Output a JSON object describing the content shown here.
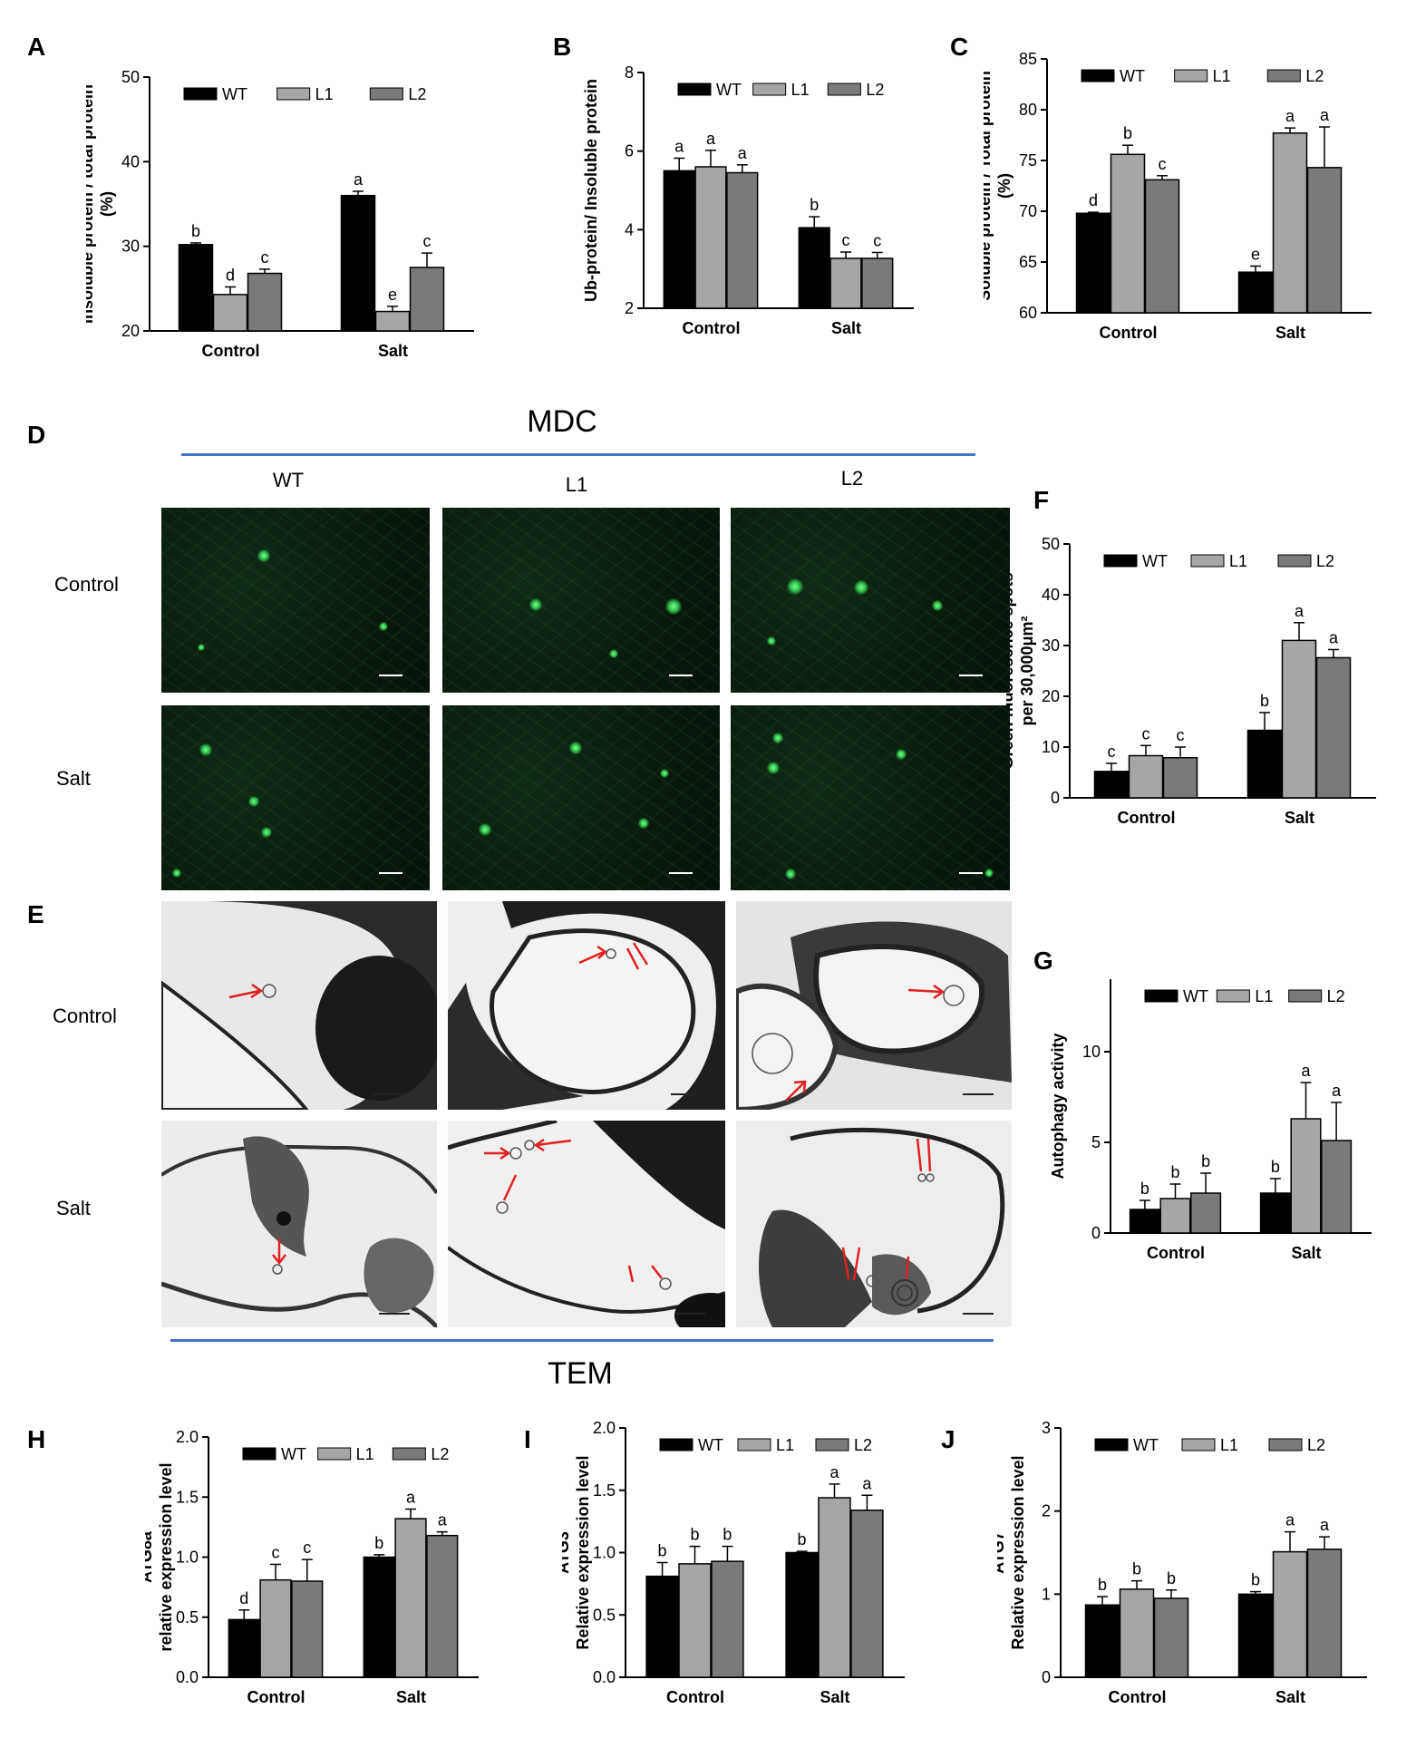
{
  "panel_letters": {
    "A": "A",
    "B": "B",
    "C": "C",
    "D": "D",
    "E": "E",
    "F": "F",
    "G": "G",
    "H": "H",
    "I": "I",
    "J": "J"
  },
  "image_panels": {
    "mdc_header": "MDC",
    "tem_header": "TEM",
    "columns": [
      "WT",
      "L1",
      "L2"
    ],
    "rows_mdc": [
      "Control",
      "Salt"
    ],
    "rows_tem": [
      "Control",
      "Salt"
    ]
  },
  "colors": {
    "WT": "#000000",
    "L1": "#a6a6a6",
    "L2": "#7a7a7a",
    "rule": "#4472c4"
  },
  "chart_data": [
    {
      "id": "A",
      "type": "bar",
      "categories": [
        "Control",
        "Salt"
      ],
      "series": [
        {
          "name": "WT",
          "values": [
            30.2,
            36.0
          ],
          "errors": [
            0.2,
            0.5
          ],
          "letters": [
            "b",
            "a"
          ]
        },
        {
          "name": "L1",
          "values": [
            24.3,
            22.3
          ],
          "errors": [
            0.9,
            0.6
          ],
          "letters": [
            "d",
            "e"
          ]
        },
        {
          "name": "L2",
          "values": [
            26.8,
            27.5
          ],
          "errors": [
            0.5,
            1.7
          ],
          "letters": [
            "c",
            "c"
          ]
        }
      ],
      "ylabel": "insoluble protein / total protein\n(%)",
      "ylim": [
        20,
        50
      ],
      "ymin_label": 20,
      "yticks": [
        20,
        30,
        40,
        50
      ],
      "legend": "top"
    },
    {
      "id": "B",
      "type": "bar",
      "categories": [
        "Control",
        "Salt"
      ],
      "series": [
        {
          "name": "WT",
          "values": [
            5.5,
            4.05
          ],
          "errors": [
            0.32,
            0.28
          ],
          "letters": [
            "a",
            "b"
          ]
        },
        {
          "name": "L1",
          "values": [
            5.6,
            3.27
          ],
          "errors": [
            0.42,
            0.16
          ],
          "letters": [
            "a",
            "c"
          ]
        },
        {
          "name": "L2",
          "values": [
            5.45,
            3.27
          ],
          "errors": [
            0.2,
            0.15
          ],
          "letters": [
            "a",
            "c"
          ]
        }
      ],
      "ylabel": "Ub-protein/ Insoluble protein",
      "ylim": [
        2,
        8
      ],
      "yticks": [
        2,
        4,
        6,
        8
      ],
      "legend": "top"
    },
    {
      "id": "C",
      "type": "bar",
      "categories": [
        "Control",
        "Salt"
      ],
      "series": [
        {
          "name": "WT",
          "values": [
            69.8,
            64.0
          ],
          "errors": [
            0.1,
            0.6
          ],
          "letters": [
            "d",
            "e"
          ]
        },
        {
          "name": "L1",
          "values": [
            75.6,
            77.7
          ],
          "errors": [
            0.9,
            0.5
          ],
          "letters": [
            "b",
            "a"
          ]
        },
        {
          "name": "L2",
          "values": [
            73.1,
            74.3
          ],
          "errors": [
            0.4,
            4.0
          ],
          "letters": [
            "c",
            "a"
          ]
        }
      ],
      "ylabel": "Soluble protein / Total protein\n(%)",
      "ylim": [
        60,
        85
      ],
      "yticks": [
        60,
        65,
        70,
        75,
        80,
        85
      ],
      "legend": "top"
    },
    {
      "id": "F",
      "type": "bar",
      "categories": [
        "Control",
        "Salt"
      ],
      "series": [
        {
          "name": "WT",
          "values": [
            5.2,
            13.3
          ],
          "errors": [
            1.6,
            3.5
          ],
          "letters": [
            "c",
            "b"
          ]
        },
        {
          "name": "L1",
          "values": [
            8.3,
            31.0
          ],
          "errors": [
            2.0,
            3.5
          ],
          "letters": [
            "c",
            "a"
          ]
        },
        {
          "name": "L2",
          "values": [
            7.9,
            27.6
          ],
          "errors": [
            2.1,
            1.6
          ],
          "letters": [
            "c",
            "a"
          ]
        }
      ],
      "ylabel": "Green ffluorescnce spots\nper 30,000μm²",
      "ylim": [
        0,
        50
      ],
      "yticks": [
        0,
        10,
        20,
        30,
        40,
        50
      ],
      "legend": "top"
    },
    {
      "id": "G",
      "type": "bar",
      "categories": [
        "Control",
        "Salt"
      ],
      "series": [
        {
          "name": "WT",
          "values": [
            1.3,
            2.2
          ],
          "errors": [
            0.5,
            0.8
          ],
          "letters": [
            "b",
            "b"
          ]
        },
        {
          "name": "L1",
          "values": [
            1.9,
            6.3
          ],
          "errors": [
            0.8,
            2.0
          ],
          "letters": [
            "b",
            "a"
          ]
        },
        {
          "name": "L2",
          "values": [
            2.2,
            5.1
          ],
          "errors": [
            1.1,
            2.1
          ],
          "letters": [
            "b",
            "a"
          ]
        }
      ],
      "ylabel": "Autophagy activity",
      "ylim": [
        0,
        14
      ],
      "yticks": [
        0,
        5,
        10
      ],
      "legend": "top"
    },
    {
      "id": "H",
      "type": "bar",
      "categories": [
        "Control",
        "Salt"
      ],
      "series": [
        {
          "name": "WT",
          "values": [
            0.48,
            1.0
          ],
          "errors": [
            0.08,
            0.02
          ],
          "letters": [
            "d",
            "b"
          ]
        },
        {
          "name": "L1",
          "values": [
            0.81,
            1.32
          ],
          "errors": [
            0.13,
            0.08
          ],
          "letters": [
            "c",
            "a"
          ]
        },
        {
          "name": "L2",
          "values": [
            0.8,
            1.18
          ],
          "errors": [
            0.18,
            0.03
          ],
          "letters": [
            "c",
            "a"
          ]
        }
      ],
      "ylabel": "ATG8a\nrelative expression level",
      "ylim": [
        0,
        2.0
      ],
      "yticks": [
        0.0,
        0.5,
        1.0,
        1.5,
        2.0
      ],
      "tickfmt": 1,
      "legend": "top"
    },
    {
      "id": "I",
      "type": "bar",
      "categories": [
        "Control",
        "Salt"
      ],
      "series": [
        {
          "name": "WT",
          "values": [
            0.81,
            1.0
          ],
          "errors": [
            0.11,
            0.01
          ],
          "letters": [
            "b",
            "b"
          ]
        },
        {
          "name": "L1",
          "values": [
            0.91,
            1.44
          ],
          "errors": [
            0.14,
            0.11
          ],
          "letters": [
            "b",
            "a"
          ]
        },
        {
          "name": "L2",
          "values": [
            0.93,
            1.34
          ],
          "errors": [
            0.12,
            0.12
          ],
          "letters": [
            "b",
            "a"
          ]
        }
      ],
      "ylabel": "ATG3\nRelative expression level",
      "ylim": [
        0,
        2.0
      ],
      "yticks": [
        0.0,
        0.5,
        1.0,
        1.5,
        2.0
      ],
      "tickfmt": 1,
      "legend": "top"
    },
    {
      "id": "J",
      "type": "bar",
      "categories": [
        "Control",
        "Salt"
      ],
      "series": [
        {
          "name": "WT",
          "values": [
            0.87,
            1.0
          ],
          "errors": [
            0.1,
            0.03
          ],
          "letters": [
            "b",
            "b"
          ]
        },
        {
          "name": "L1",
          "values": [
            1.06,
            1.51
          ],
          "errors": [
            0.1,
            0.24
          ],
          "letters": [
            "b",
            "a"
          ]
        },
        {
          "name": "L2",
          "values": [
            0.95,
            1.54
          ],
          "errors": [
            0.1,
            0.15
          ],
          "letters": [
            "b",
            "a"
          ]
        }
      ],
      "ylabel": "ATG7\nRelative expression level",
      "ylim": [
        0,
        3
      ],
      "yticks": [
        0,
        1,
        2,
        3
      ],
      "legend": "top"
    }
  ]
}
